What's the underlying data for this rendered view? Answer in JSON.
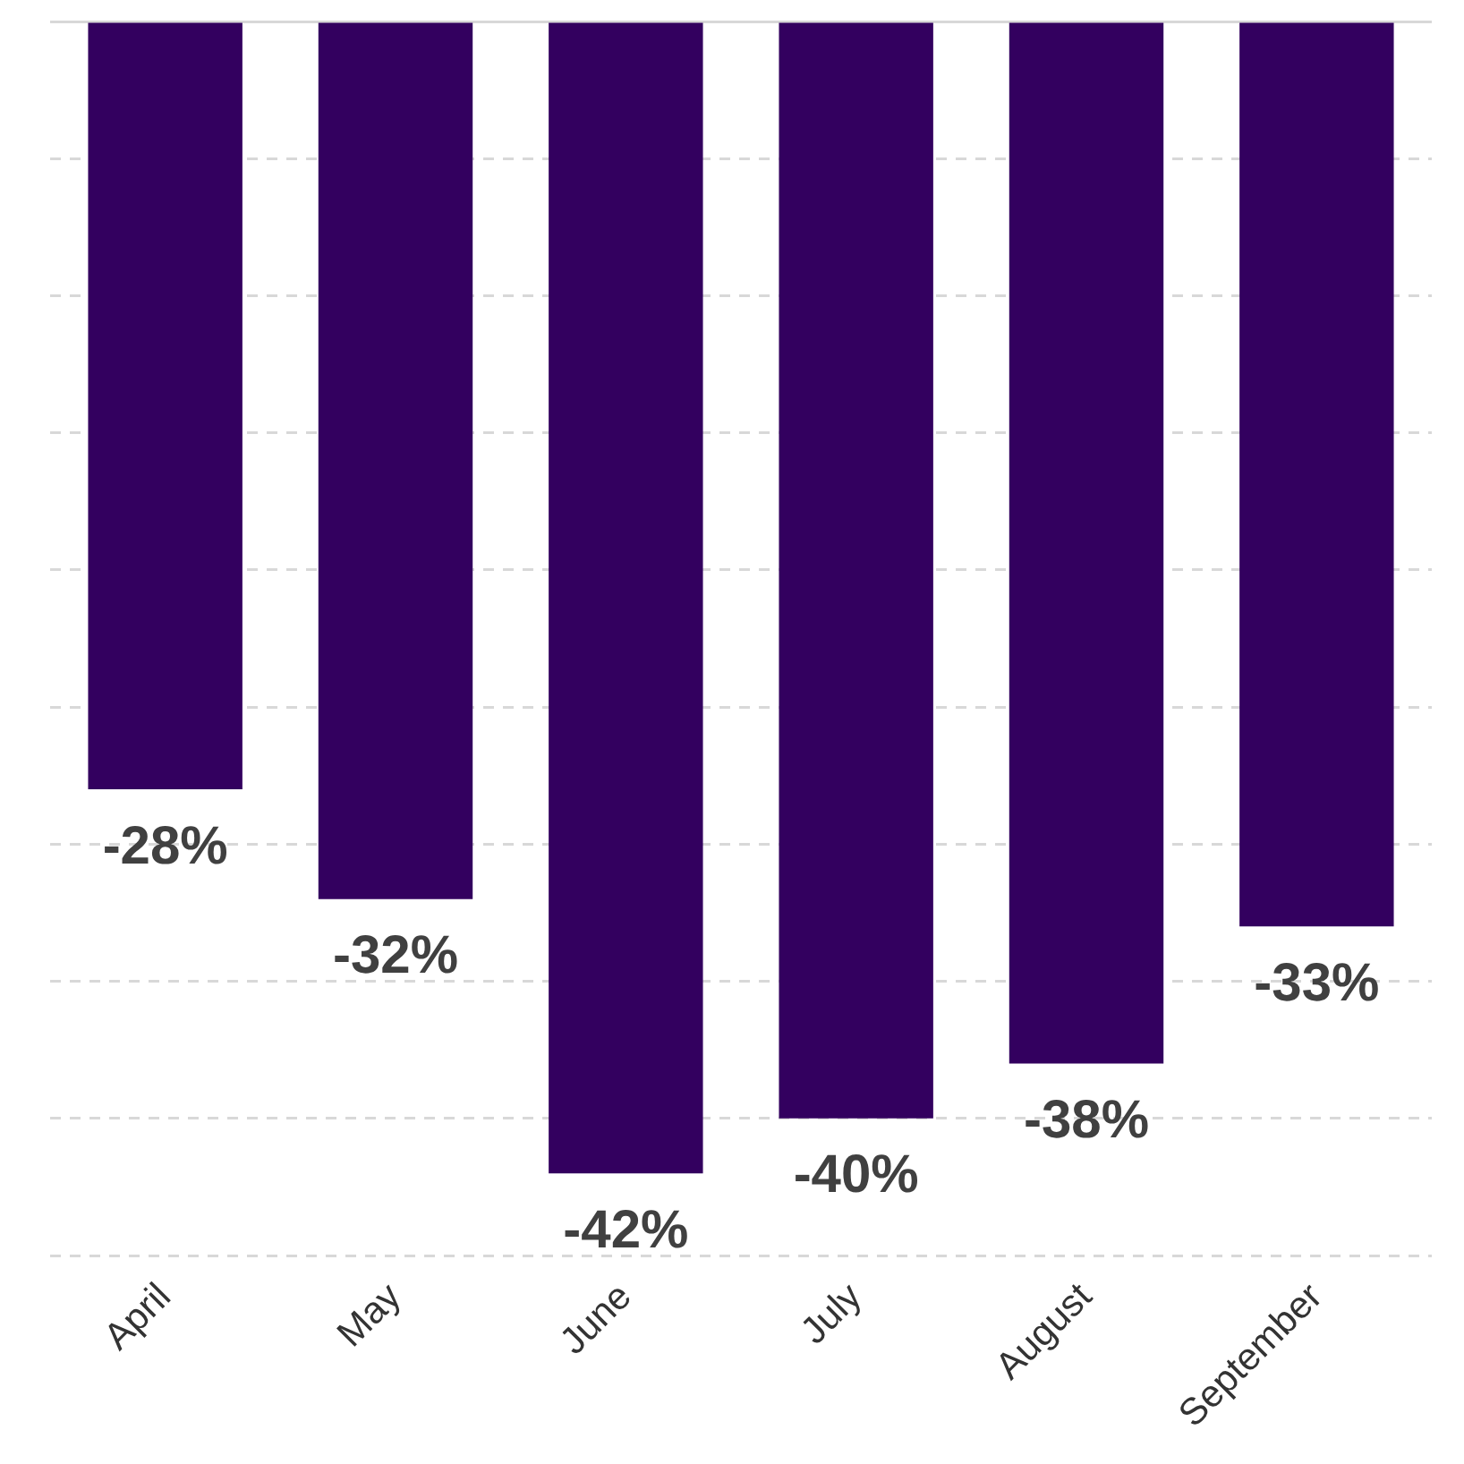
{
  "chart_data": {
    "type": "bar",
    "categories": [
      "April",
      "May",
      "June",
      "July",
      "August",
      "September"
    ],
    "values": [
      -28,
      -32,
      -42,
      -40,
      -38,
      -33
    ],
    "value_labels": [
      "-28%",
      "-32%",
      "-42%",
      "-40%",
      "-38%",
      "-33%"
    ],
    "color": "#33005f",
    "ylim": [
      -45,
      0
    ],
    "yticks": [
      {
        "value": -45,
        "label": null
      },
      {
        "value": -40,
        "label": null
      },
      {
        "value": -35,
        "label": null
      },
      {
        "value": -30,
        "label": null
      },
      {
        "value": -25,
        "label": null
      },
      {
        "value": -20,
        "label": null
      },
      {
        "value": -15,
        "label": null
      },
      {
        "value": -10,
        "label": null
      },
      {
        "value": -5,
        "label": null
      },
      {
        "value": 0,
        "label": null
      }
    ],
    "grid": "y",
    "tick_labels": "x"
  }
}
